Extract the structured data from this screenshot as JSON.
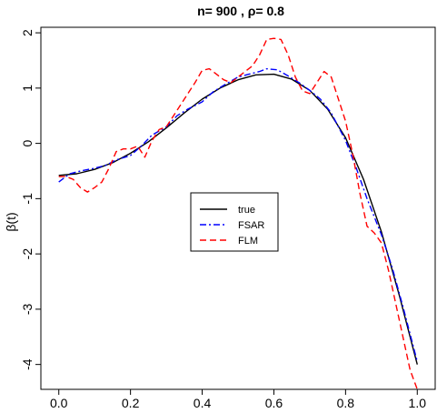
{
  "chart_data": {
    "type": "line",
    "title": "n= 900  , ρ= 0.8",
    "xlabel": "",
    "ylabel": "β(t)",
    "xlim": [
      -0.05,
      1.05
    ],
    "ylim": [
      -4.45,
      2.1
    ],
    "x_ticks": [
      "0.0",
      "0.2",
      "0.4",
      "0.6",
      "0.8",
      "1.0"
    ],
    "x_tick_values": [
      0.0,
      0.2,
      0.4,
      0.6,
      0.8,
      1.0
    ],
    "y_ticks": [
      "-4",
      "-3",
      "-2",
      "-1",
      "0",
      "1",
      "2"
    ],
    "y_tick_values": [
      -4,
      -3,
      -2,
      -1,
      0,
      1,
      2
    ],
    "grid": false,
    "legend_position": "center",
    "series": [
      {
        "name": "true",
        "color": "#000000",
        "dash": "solid",
        "x": [
          0.0,
          0.05,
          0.1,
          0.15,
          0.2,
          0.25,
          0.3,
          0.35,
          0.4,
          0.45,
          0.5,
          0.55,
          0.6,
          0.65,
          0.7,
          0.75,
          0.8,
          0.85,
          0.9,
          0.95,
          1.0
        ],
        "y": [
          -0.58,
          -0.55,
          -0.47,
          -0.35,
          -0.18,
          0.03,
          0.28,
          0.55,
          0.8,
          1.0,
          1.15,
          1.24,
          1.25,
          1.16,
          0.96,
          0.62,
          0.1,
          -0.65,
          -1.6,
          -2.75,
          -4.0
        ]
      },
      {
        "name": "FSAR",
        "color": "#0000ff",
        "dash": "dashdot",
        "x": [
          0.0,
          0.03,
          0.06,
          0.1,
          0.13,
          0.16,
          0.2,
          0.23,
          0.26,
          0.3,
          0.33,
          0.36,
          0.4,
          0.43,
          0.46,
          0.5,
          0.53,
          0.56,
          0.58,
          0.61,
          0.64,
          0.67,
          0.7,
          0.73,
          0.76,
          0.8,
          0.83,
          0.86,
          0.9,
          0.93,
          0.96,
          1.0
        ],
        "y": [
          -0.7,
          -0.55,
          -0.5,
          -0.45,
          -0.4,
          -0.3,
          -0.22,
          -0.05,
          0.15,
          0.3,
          0.5,
          0.62,
          0.75,
          0.93,
          1.05,
          1.2,
          1.25,
          1.3,
          1.35,
          1.33,
          1.22,
          1.1,
          0.96,
          0.8,
          0.55,
          0.05,
          -0.45,
          -1.0,
          -1.65,
          -2.25,
          -2.95,
          -3.95
        ]
      },
      {
        "name": "FLM",
        "color": "#ff0000",
        "dash": "dashed",
        "x": [
          0.0,
          0.02,
          0.04,
          0.06,
          0.08,
          0.1,
          0.12,
          0.14,
          0.16,
          0.18,
          0.2,
          0.22,
          0.24,
          0.26,
          0.28,
          0.3,
          0.32,
          0.34,
          0.36,
          0.38,
          0.4,
          0.42,
          0.44,
          0.46,
          0.48,
          0.5,
          0.52,
          0.54,
          0.56,
          0.58,
          0.6,
          0.62,
          0.64,
          0.66,
          0.68,
          0.7,
          0.72,
          0.74,
          0.76,
          0.78,
          0.8,
          0.82,
          0.84,
          0.86,
          0.88,
          0.9,
          0.92,
          0.94,
          0.96,
          0.98,
          1.0
        ],
        "y": [
          -0.6,
          -0.6,
          -0.65,
          -0.8,
          -0.88,
          -0.8,
          -0.7,
          -0.45,
          -0.15,
          -0.1,
          -0.1,
          -0.05,
          -0.25,
          0.05,
          0.25,
          0.3,
          0.5,
          0.7,
          0.9,
          1.1,
          1.32,
          1.35,
          1.25,
          1.15,
          1.1,
          1.2,
          1.3,
          1.4,
          1.6,
          1.88,
          1.9,
          1.88,
          1.6,
          1.2,
          0.95,
          0.9,
          1.1,
          1.3,
          1.2,
          0.8,
          0.4,
          -0.2,
          -0.9,
          -1.5,
          -1.62,
          -1.8,
          -2.3,
          -2.9,
          -3.5,
          -4.1,
          -4.45
        ]
      }
    ]
  }
}
